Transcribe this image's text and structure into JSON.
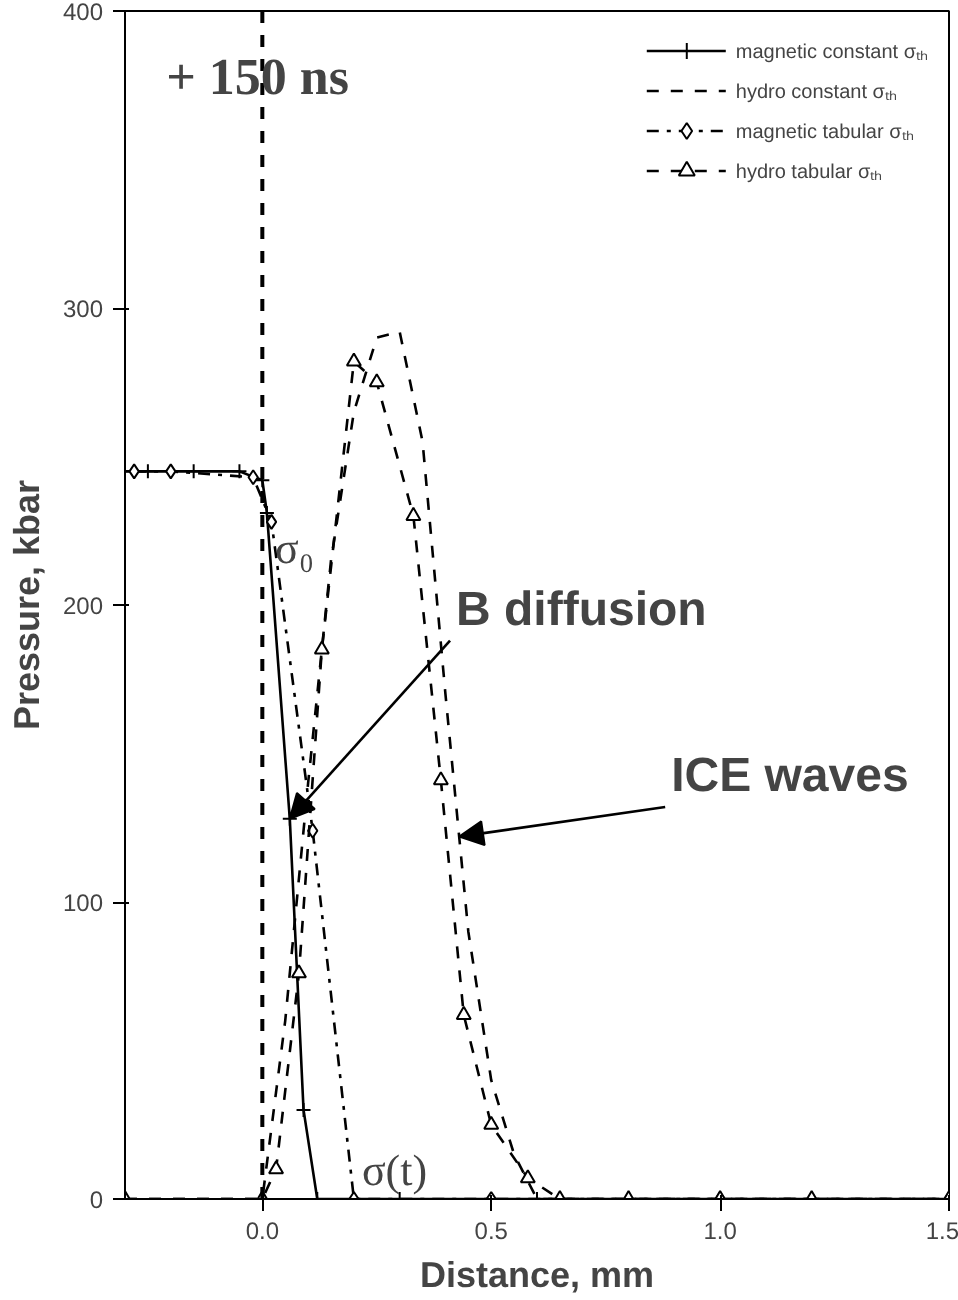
{
  "chart_data": {
    "type": "line",
    "xlabel": "Distance, mm",
    "ylabel": "Pressure, kbar",
    "xlim": [
      -0.3,
      1.5
    ],
    "ylim": [
      0,
      400
    ],
    "xticks": [
      {
        "value": 0,
        "label": "0.0"
      },
      {
        "value": 0.5,
        "label": "0.5"
      },
      {
        "value": 1,
        "label": "1.0"
      },
      {
        "value": 1.5,
        "label": "1.5"
      }
    ],
    "yticks": [
      0,
      100,
      200,
      300,
      400
    ],
    "grid": false,
    "legend": "top right",
    "series": [
      {
        "name": "magnetic constant σₜₕ",
        "color": "#000000",
        "line_style": "solid",
        "marker": "cross",
        "x": [
          -0.3,
          -0.25,
          -0.15,
          -0.05,
          0,
          0.01,
          0.06,
          0.09,
          0.12,
          0.3,
          0.6,
          1.0,
          1.5
        ],
        "values": [
          245,
          245,
          245,
          245,
          242,
          231,
          128,
          30,
          0,
          0,
          0,
          0,
          0
        ]
      },
      {
        "name": "hydro constant σₜₕ",
        "color": "#000000",
        "line_style": "dashed",
        "marker": "none",
        "x": [
          -0.3,
          0,
          0.05,
          0.1,
          0.15,
          0.2,
          0.25,
          0.3,
          0.35,
          0.4,
          0.45,
          0.5,
          0.55,
          0.6,
          1.5
        ],
        "values": [
          0,
          0,
          60,
          140,
          215,
          265,
          290,
          292,
          255,
          170,
          90,
          40,
          15,
          0,
          0
        ]
      },
      {
        "name": "magnetic tabular σₜₕ",
        "color": "#000000",
        "line_style": "dashdot",
        "marker": "diamond",
        "x": [
          -0.28,
          -0.2,
          -0.02,
          0.02,
          0.11,
          0.2,
          0.5,
          1.0,
          1.5
        ],
        "values": [
          245,
          245,
          243,
          228,
          124,
          0,
          0,
          0,
          0
        ]
      },
      {
        "name": "hydro tabular σₜₕ",
        "color": "#000000",
        "line_style": "dashed",
        "marker": "triangle",
        "x": [
          -0.3,
          0,
          0.03,
          0.08,
          0.13,
          0.2,
          0.25,
          0.33,
          0.39,
          0.44,
          0.5,
          0.58,
          0.65,
          0.8,
          1.0,
          1.2,
          1.5
        ],
        "values": [
          0,
          0,
          10,
          76,
          185,
          282,
          275,
          230,
          141,
          62,
          25,
          7,
          0,
          0,
          0,
          0,
          0
        ]
      }
    ],
    "ref_lines": [
      {
        "axis": "x",
        "value": 0,
        "label": null,
        "line_style": "dashed",
        "color": "#000000"
      }
    ],
    "annotations": [
      "+ 150 ns",
      {
        "text": "B diffusion",
        "x": 0.06,
        "y": 128
      },
      {
        "text": "ICE waves",
        "x": 0.43,
        "y": 122
      },
      {
        "text": "σ(t)",
        "x": 0.2,
        "y": 0
      },
      {
        "text": "σ₀",
        "x": 0.01,
        "y": 231
      }
    ]
  }
}
